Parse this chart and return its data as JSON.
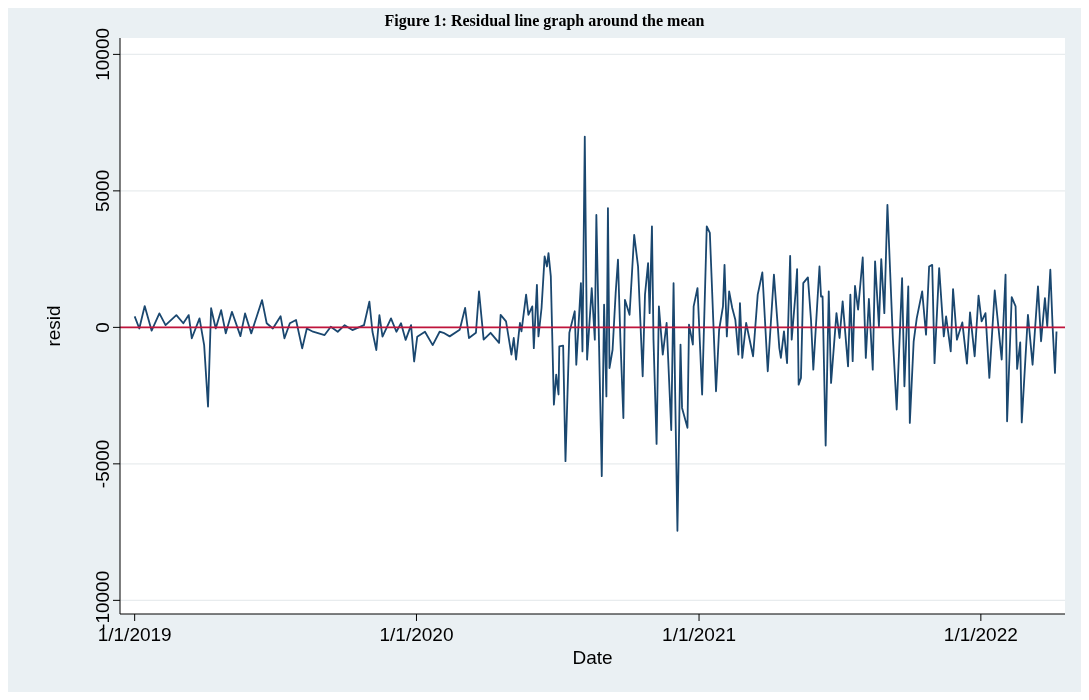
{
  "chart_data": {
    "type": "line",
    "title": "Figure 1: Residual line graph around the mean",
    "xlabel": "Date",
    "ylabel": "resid",
    "xlim": [
      "2018-12-13",
      "2022-04-20"
    ],
    "ylim": [
      -10500,
      10600
    ],
    "xticks": [
      {
        "value": "2019-01-01",
        "label": "1/1/2019"
      },
      {
        "value": "2020-01-01",
        "label": "1/1/2020"
      },
      {
        "value": "2021-01-01",
        "label": "1/1/2021"
      },
      {
        "value": "2022-01-01",
        "label": "1/1/2022"
      }
    ],
    "yticks": [
      -10000,
      -5000,
      0,
      5000,
      10000
    ],
    "grid": "y",
    "marker": "none",
    "line_style": "solid",
    "ref_lines": [
      {
        "axis": "y",
        "value": 0,
        "color": "#c0143c"
      }
    ],
    "x": [
      "2019-01-01",
      "2019-01-07",
      "2019-01-14",
      "2019-01-23",
      "2019-02-02",
      "2019-02-10",
      "2019-02-24",
      "2019-03-05",
      "2019-03-12",
      "2019-03-16",
      "2019-03-26",
      "2019-04-01",
      "2019-04-06",
      "2019-04-10",
      "2019-04-16",
      "2019-04-23",
      "2019-04-29",
      "2019-05-07",
      "2019-05-18",
      "2019-05-24",
      "2019-06-01",
      "2019-06-08",
      "2019-06-15",
      "2019-06-21",
      "2019-06-29",
      "2019-07-09",
      "2019-07-14",
      "2019-07-21",
      "2019-07-29",
      "2019-08-06",
      "2019-08-12",
      "2019-08-20",
      "2019-09-04",
      "2019-09-12",
      "2019-09-21",
      "2019-09-30",
      "2019-10-10",
      "2019-10-25",
      "2019-11-01",
      "2019-11-05",
      "2019-11-10",
      "2019-11-14",
      "2019-11-18",
      "2019-11-29",
      "2019-12-06",
      "2019-12-12",
      "2019-12-18",
      "2019-12-25",
      "2019-12-29",
      "2020-01-02",
      "2020-01-12",
      "2020-01-22",
      "2020-01-31",
      "2020-02-05",
      "2020-02-13",
      "2020-02-26",
      "2020-03-04",
      "2020-03-09",
      "2020-03-18",
      "2020-03-22",
      "2020-03-28",
      "2020-04-06",
      "2020-04-17",
      "2020-04-19",
      "2020-04-26",
      "2020-05-03",
      "2020-05-06",
      "2020-05-09",
      "2020-05-14",
      "2020-05-16",
      "2020-05-22",
      "2020-05-25",
      "2020-05-30",
      "2020-06-01",
      "2020-06-05",
      "2020-06-07",
      "2020-06-11",
      "2020-06-15",
      "2020-06-18",
      "2020-06-20",
      "2020-06-23",
      "2020-06-27",
      "2020-06-30",
      "2020-07-03",
      "2020-07-04",
      "2020-07-09",
      "2020-07-12",
      "2020-07-17",
      "2020-07-24",
      "2020-07-26",
      "2020-08-01",
      "2020-08-03",
      "2020-08-06",
      "2020-08-09",
      "2020-08-15",
      "2020-08-19",
      "2020-08-21",
      "2020-08-28",
      "2020-08-31",
      "2020-09-03",
      "2020-09-05",
      "2020-09-07",
      "2020-09-11",
      "2020-09-15",
      "2020-09-18",
      "2020-09-21",
      "2020-09-25",
      "2020-09-27",
      "2020-10-03",
      "2020-10-09",
      "2020-10-14",
      "2020-10-20",
      "2020-10-23",
      "2020-10-27",
      "2020-10-29",
      "2020-11-01",
      "2020-11-03",
      "2020-11-07",
      "2020-11-10",
      "2020-11-15",
      "2020-11-20",
      "2020-11-26",
      "2020-11-29",
      "2020-12-01",
      "2020-12-04",
      "2020-12-08",
      "2020-12-10",
      "2020-12-17",
      "2020-12-19",
      "2020-12-24",
      "2020-12-25",
      "2020-12-30",
      "2021-01-05",
      "2021-01-11",
      "2021-01-15",
      "2021-01-23",
      "2021-01-27",
      "2021-02-01",
      "2021-02-03",
      "2021-02-06",
      "2021-02-09",
      "2021-02-13",
      "2021-02-17",
      "2021-02-21",
      "2021-02-23",
      "2021-02-26",
      "2021-03-03",
      "2021-03-12",
      "2021-03-18",
      "2021-03-24",
      "2021-03-31",
      "2021-04-08",
      "2021-04-15",
      "2021-04-17",
      "2021-04-21",
      "2021-04-25",
      "2021-04-29",
      "2021-05-01",
      "2021-05-06",
      "2021-05-08",
      "2021-05-10",
      "2021-05-13",
      "2021-05-16",
      "2021-05-22",
      "2021-05-26",
      "2021-05-29",
      "2021-06-06",
      "2021-06-08",
      "2021-06-10",
      "2021-06-14",
      "2021-06-18",
      "2021-06-21",
      "2021-06-28",
      "2021-07-02",
      "2021-07-06",
      "2021-07-13",
      "2021-07-16",
      "2021-07-19",
      "2021-07-22",
      "2021-07-26",
      "2021-08-01",
      "2021-08-05",
      "2021-08-09",
      "2021-08-14",
      "2021-08-17",
      "2021-08-22",
      "2021-08-25",
      "2021-08-29",
      "2021-09-02",
      "2021-09-09",
      "2021-09-14",
      "2021-09-21",
      "2021-09-24",
      "2021-09-29",
      "2021-10-01",
      "2021-10-06",
      "2021-10-10",
      "2021-10-17",
      "2021-10-22",
      "2021-10-26",
      "2021-10-30",
      "2021-11-02",
      "2021-11-08",
      "2021-11-14",
      "2021-11-17",
      "2021-11-23",
      "2021-11-26",
      "2021-12-01",
      "2021-12-08",
      "2021-12-14",
      "2021-12-18",
      "2021-12-24",
      "2021-12-29",
      "2022-01-02",
      "2022-01-07",
      "2022-01-12",
      "2022-01-19",
      "2022-01-28",
      "2022-02-02",
      "2022-02-04",
      "2022-02-10",
      "2022-02-15",
      "2022-02-17",
      "2022-02-21",
      "2022-02-23",
      "2022-03-03",
      "2022-03-09",
      "2022-03-16",
      "2022-03-20",
      "2022-03-25",
      "2022-03-28",
      "2022-04-01",
      "2022-04-04",
      "2022-04-07",
      "2022-04-09"
    ],
    "series": [
      {
        "color": "#1a476f",
        "values": [
          400,
          -40,
          780,
          -120,
          510,
          80,
          450,
          150,
          450,
          -400,
          330,
          -650,
          -2900,
          700,
          -40,
          630,
          -220,
          570,
          -320,
          510,
          -220,
          390,
          1000,
          150,
          -40,
          410,
          -400,
          150,
          270,
          -770,
          -40,
          -160,
          -280,
          20,
          -160,
          80,
          -100,
          80,
          940,
          -160,
          -830,
          450,
          -340,
          330,
          -160,
          150,
          -460,
          80,
          -1250,
          -340,
          -160,
          -650,
          -160,
          -200,
          -330,
          -90,
          710,
          -390,
          -200,
          1320,
          -450,
          -200,
          -570,
          460,
          220,
          -1000,
          -390,
          -1180,
          160,
          -150,
          1200,
          460,
          770,
          -760,
          1560,
          -330,
          710,
          2600,
          2230,
          2720,
          1870,
          -2830,
          -1730,
          -2460,
          -700,
          -670,
          -4900,
          -200,
          590,
          -1370,
          1620,
          -880,
          6990,
          -1180,
          1440,
          -450,
          4120,
          -5450,
          830,
          -2530,
          4370,
          -1490,
          -820,
          1260,
          2480,
          -330,
          -3320,
          1010,
          460,
          3390,
          2230,
          -1790,
          1200,
          2350,
          520,
          3700,
          -450,
          -4270,
          770,
          -1000,
          160,
          -3760,
          1620,
          -2290,
          -7450,
          -630,
          -2950,
          -3680,
          100,
          -630,
          770,
          1440,
          -2460,
          3700,
          3460,
          -2340,
          -90,
          770,
          2290,
          -330,
          1320,
          710,
          280,
          -1000,
          890,
          -1120,
          160,
          -1060,
          1200,
          2010,
          -1610,
          1930,
          -760,
          -1120,
          -150,
          -1310,
          2620,
          -450,
          1260,
          2130,
          -2100,
          -1850,
          1620,
          1830,
          280,
          -1550,
          2230,
          1130,
          1130,
          -4330,
          1320,
          -2040,
          520,
          -390,
          950,
          -1430,
          1200,
          -1240,
          1520,
          650,
          2560,
          -1120,
          1040,
          -1550,
          2420,
          40,
          2500,
          520,
          4490,
          -390,
          -3010,
          1800,
          -2160,
          1500,
          -3500,
          -510,
          340,
          1320,
          -270,
          2230,
          2290,
          -1310,
          2170,
          -330,
          400,
          -880,
          1400,
          -450,
          180,
          -1330,
          550,
          -1060,
          1160,
          220,
          520,
          -1850,
          1350,
          -1180,
          1930,
          -3440,
          1110,
          770,
          -1520,
          -550,
          -3480,
          460,
          -1370,
          1500,
          -510,
          1070,
          40,
          2110,
          0,
          -1670,
          -150
        ]
      }
    ]
  }
}
